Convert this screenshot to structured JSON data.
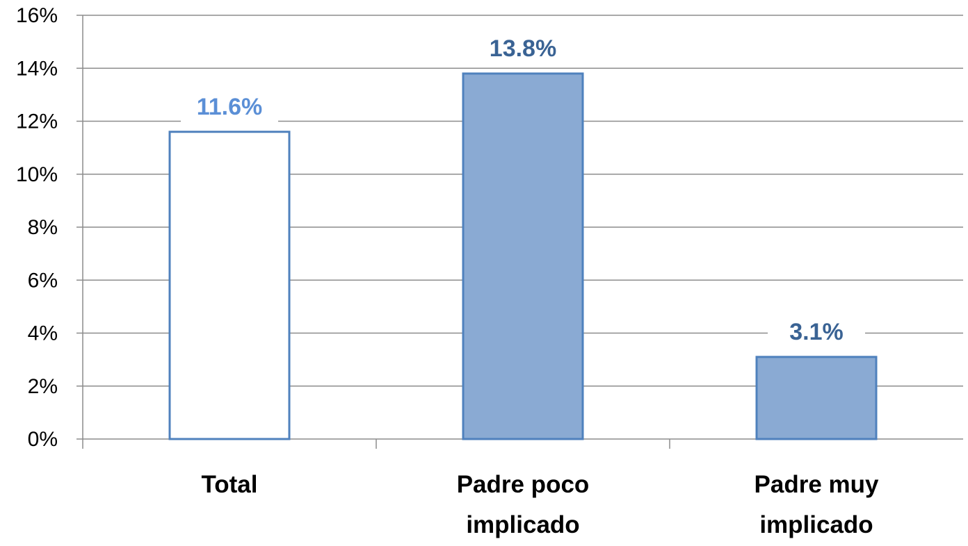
{
  "chart_data": {
    "type": "bar",
    "categories": [
      "Total",
      "Padre poco implicado",
      "Padre muy implicado"
    ],
    "category_lines": [
      [
        "Total"
      ],
      [
        "Padre poco",
        "implicado"
      ],
      [
        "Padre muy",
        "implicado"
      ]
    ],
    "values": [
      11.6,
      13.8,
      3.1
    ],
    "value_labels": [
      "11.6%",
      "13.8%",
      "3.1%"
    ],
    "title": "",
    "xlabel": "",
    "ylabel": "",
    "ylim": [
      0,
      16
    ],
    "yticks": [
      0,
      2,
      4,
      6,
      8,
      10,
      12,
      14,
      16
    ],
    "ytick_labels": [
      "0%",
      "2%",
      "4%",
      "6%",
      "8%",
      "10%",
      "12%",
      "14%",
      "16%"
    ],
    "grid": true,
    "legend": "none",
    "colors": {
      "outline": "#4F81BD",
      "fill": "#8AAAD3",
      "label_light": "#5B8FD6",
      "label_dark": "#3A6394",
      "grid": "#8C8C8C",
      "axis_text": "#000000"
    },
    "bar_styles": [
      "outline",
      "filled",
      "filled"
    ]
  }
}
